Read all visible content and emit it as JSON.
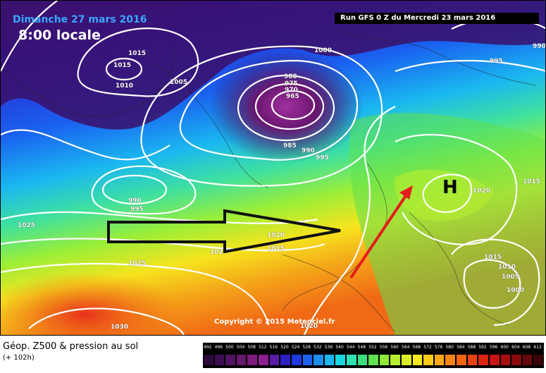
{
  "map": {
    "date_title": "Dimanche 27 mars 2016",
    "time_title": "8:00 locale",
    "run_label": "Run GFS 0 Z du Mercredi 23 mars 2016",
    "copyright": "Copyright © 2015 Meteociel.fr",
    "pressure_center": "H",
    "isobar_labels": [
      "1015",
      "1015",
      "1010",
      "1005",
      "1000",
      "980",
      "975",
      "970",
      "965",
      "985",
      "990",
      "995",
      "995",
      "990",
      "990",
      "995",
      "1010",
      "1015",
      "1025",
      "1025",
      "1030",
      "1020",
      "1015",
      "1015",
      "1010",
      "1005",
      "1000",
      "1020",
      "102"
    ]
  },
  "footer": {
    "title": "Géop. Z500 & pression au sol",
    "subtitle": "(+ 102h)"
  },
  "legend": {
    "values": [
      "492",
      "496",
      "500",
      "504",
      "508",
      "512",
      "516",
      "520",
      "524",
      "528",
      "532",
      "536",
      "540",
      "544",
      "548",
      "552",
      "556",
      "560",
      "564",
      "568",
      "572",
      "576",
      "580",
      "584",
      "588",
      "592",
      "596",
      "600",
      "604",
      "608",
      "612"
    ],
    "colors": [
      "#2a0a3a",
      "#3a0f52",
      "#4f1560",
      "#65196e",
      "#7c1a7c",
      "#8a1f8f",
      "#5b1aa6",
      "#2d20c0",
      "#1f3ae0",
      "#1a63f0",
      "#1a8ff0",
      "#1ab6f0",
      "#1ad6e0",
      "#2fe0b0",
      "#3ae080",
      "#5ee050",
      "#8ee838",
      "#b8ee30",
      "#dcee28",
      "#f6ea1e",
      "#f8cc18",
      "#f6a818",
      "#f48618",
      "#f06414",
      "#e84214",
      "#dc2412",
      "#c81414",
      "#a80e0e",
      "#880a0a",
      "#660808",
      "#3a0404"
    ]
  }
}
